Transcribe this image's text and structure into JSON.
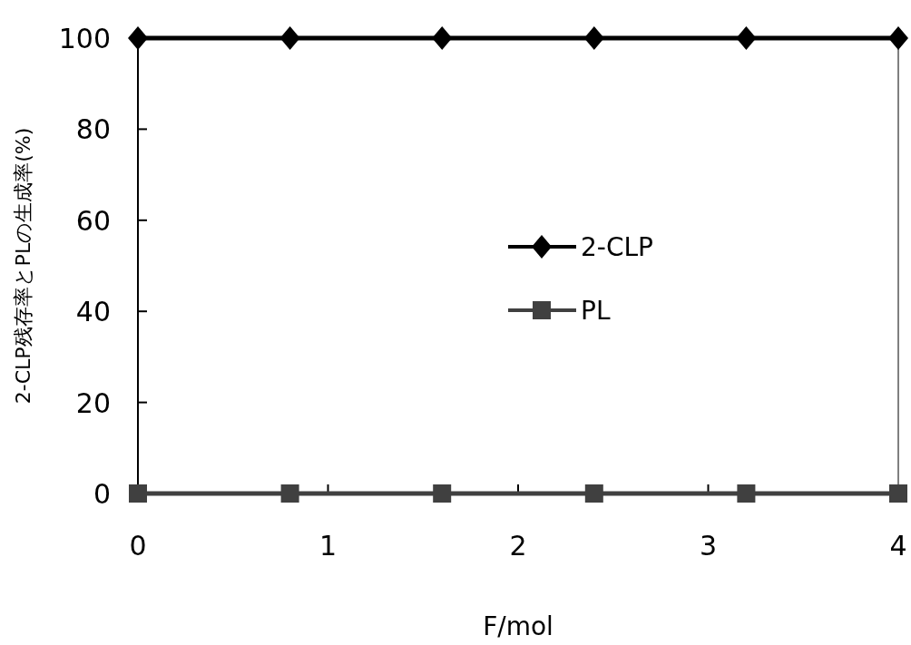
{
  "chart_data": {
    "type": "line",
    "xlabel": "F/mol",
    "ylabel": "2-CLP残存率とPLの生成率(%)",
    "x": [
      0,
      0.8,
      1.6,
      2.4,
      3.2,
      4.0
    ],
    "series": [
      {
        "name": "2-CLP",
        "color": "#000000",
        "marker": "diamond",
        "values": [
          100,
          100,
          100,
          100,
          100,
          100
        ]
      },
      {
        "name": "PL",
        "color": "#404040",
        "marker": "square",
        "values": [
          0,
          0,
          0,
          0,
          0,
          0
        ]
      }
    ],
    "xlim": [
      0,
      4
    ],
    "ylim": [
      0,
      100
    ],
    "xticks": [
      0,
      1,
      2,
      3,
      4
    ],
    "yticks": [
      0,
      20,
      40,
      60,
      80,
      100
    ],
    "grid": false,
    "legend": "center"
  }
}
